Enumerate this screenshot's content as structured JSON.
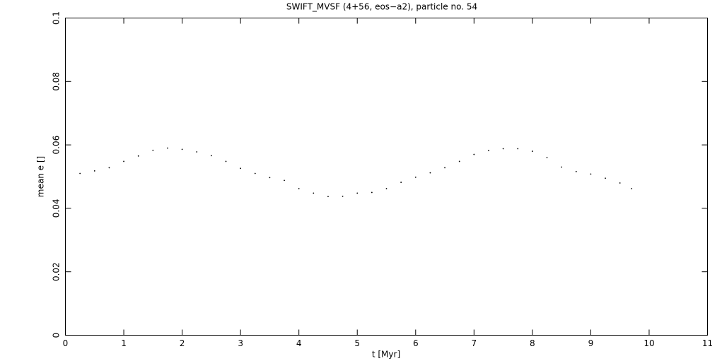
{
  "chart_data": {
    "type": "scatter",
    "title": "SWIFT_MVSF (4+56, eos−a2), particle no. 54",
    "x_label": "t [Myr]",
    "y_label": "mean e []",
    "color": "#000000",
    "x": [
      0.25,
      0.5,
      0.75,
      1.0,
      1.25,
      1.5,
      1.75,
      2.0,
      2.25,
      2.5,
      2.75,
      3.0,
      3.25,
      3.5,
      3.75,
      4.0,
      4.25,
      4.5,
      4.75,
      5.0,
      5.25,
      5.5,
      5.75,
      6.0,
      6.25,
      6.5,
      6.75,
      7.0,
      7.25,
      7.5,
      7.75,
      8.0,
      8.25,
      8.5,
      8.75,
      9.0,
      9.25,
      9.5,
      9.7
    ],
    "values": [
      0.051,
      0.0518,
      0.0528,
      0.0548,
      0.0565,
      0.0583,
      0.059,
      0.0586,
      0.0578,
      0.0566,
      0.0548,
      0.0526,
      0.051,
      0.0497,
      0.0488,
      0.0462,
      0.0448,
      0.0437,
      0.0438,
      0.0448,
      0.045,
      0.0462,
      0.0482,
      0.0498,
      0.0512,
      0.0528,
      0.0548,
      0.057,
      0.0582,
      0.0588,
      0.0588,
      0.058,
      0.056,
      0.053,
      0.0516,
      0.0508,
      0.0495,
      0.048,
      0.0462
    ],
    "xlim": [
      0,
      11
    ],
    "xticks": [
      0,
      1,
      2,
      3,
      4,
      5,
      6,
      7,
      8,
      9,
      10,
      11
    ],
    "ylim": [
      0,
      0.1
    ],
    "yticks": [
      0,
      0.02,
      0.04,
      0.06,
      0.08,
      0.1
    ]
  }
}
